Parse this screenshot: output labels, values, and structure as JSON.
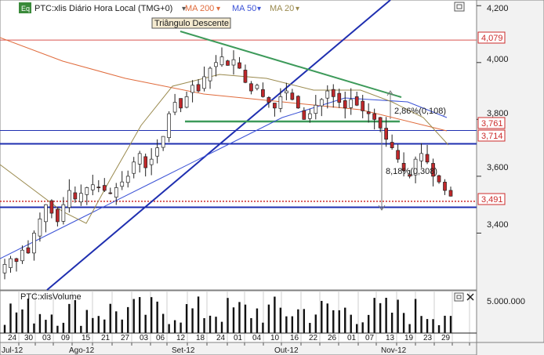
{
  "header": {
    "eq_icon": "Eq",
    "symbol": "PTC:xlis Diário Hora Local (TMG+0)",
    "indicators": [
      {
        "label": "MA 200",
        "color": "#e06b3c"
      },
      {
        "label": "MA 50",
        "color": "#3b52d6"
      },
      {
        "label": "MA 20",
        "color": "#9a8a4e"
      }
    ],
    "restore_icon": "restore-window-icon"
  },
  "volume_header": {
    "label": "PTC:xlisVolume",
    "restore_icon": "restore-window-icon",
    "close_icon": "close-icon"
  },
  "pattern_label": "Triângulo Descente",
  "annotations": [
    {
      "text": "2,86%(0,108)"
    },
    {
      "text": "8,18%(0,308)"
    }
  ],
  "price_axis": {
    "ticks": [
      "4,200",
      "4,000",
      "3,800",
      "3,600",
      "3,400"
    ],
    "markers": [
      {
        "label": "4,079",
        "value": 4.079,
        "color": "#cc2b2b"
      },
      {
        "label": "3,761",
        "value": 3.761,
        "color": "#cc2b2b"
      },
      {
        "label": "3,714",
        "value": 3.714,
        "color": "#cc2b2b"
      },
      {
        "label": "3,491",
        "value": 3.491,
        "color": "#cc2b2b"
      }
    ]
  },
  "volume_axis": {
    "ticks": [
      "5.000.000"
    ]
  },
  "time_axis": {
    "days": [
      "24",
      "30",
      "03",
      "09",
      "15",
      "21",
      "27",
      "03",
      "06",
      "12",
      "18",
      "24",
      "01",
      "04",
      "10",
      "16",
      "22",
      "26",
      "01",
      "07",
      "13",
      "19",
      "23",
      "29"
    ],
    "months": [
      "Jul-12",
      "Ago-12",
      "Set-12",
      "Out-12",
      "Nov-12"
    ]
  },
  "chart_data": {
    "type": "candlestick",
    "title": "PTC:xlis Diário Hora Local (TMG+0)",
    "ylim": [
      3.2,
      4.22
    ],
    "levels": {
      "resistance_red": 4.079,
      "blue_upper": 3.761,
      "blue_mid": 3.714,
      "support_blue": 3.491,
      "dotted_red": 3.512
    },
    "close_series": [
      3.29,
      3.31,
      3.3,
      3.34,
      3.33,
      3.4,
      3.45,
      3.5,
      3.47,
      3.44,
      3.5,
      3.55,
      3.52,
      3.54,
      3.56,
      3.57,
      3.56,
      3.55,
      3.54,
      3.56,
      3.58,
      3.6,
      3.65,
      3.68,
      3.63,
      3.66,
      3.7,
      3.74,
      3.82,
      3.86,
      3.84,
      3.88,
      3.92,
      3.9,
      3.95,
      3.98,
      4.0,
      4.02,
      3.99,
      4.01,
      3.98,
      3.93,
      3.9,
      3.92,
      3.88,
      3.86,
      3.84,
      3.88,
      3.9,
      3.87,
      3.84,
      3.8,
      3.82,
      3.85,
      3.87,
      3.9,
      3.88,
      3.86,
      3.84,
      3.87,
      3.85,
      3.83,
      3.82,
      3.8,
      3.77,
      3.73,
      3.7,
      3.66,
      3.62,
      3.6,
      3.66,
      3.68,
      3.65,
      3.6,
      3.58,
      3.55,
      3.53
    ]
  }
}
